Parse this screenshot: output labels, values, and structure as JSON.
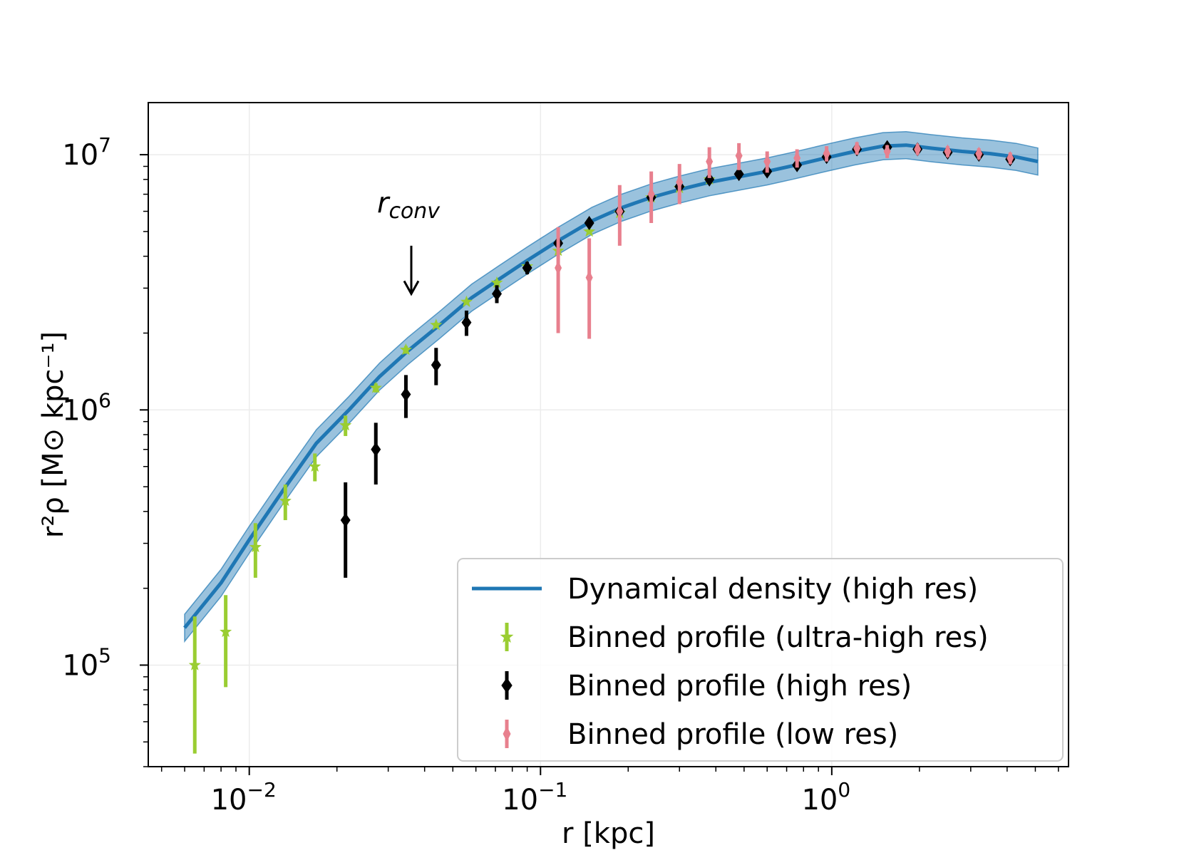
{
  "chart_data": {
    "type": "line",
    "title": "",
    "xlabel": "r [kpc]",
    "ylabel": "r²ρ [M⊙ kpc⁻¹]",
    "xscale": "log",
    "yscale": "log",
    "xlim": [
      0.0045,
      6.5
    ],
    "ylim": [
      40000,
      16000000
    ],
    "grid": true,
    "x_ticks": [
      {
        "value": 0.01,
        "base": "10",
        "exp": "−2"
      },
      {
        "value": 0.1,
        "base": "10",
        "exp": "−1"
      },
      {
        "value": 1,
        "base": "10",
        "exp": "0"
      }
    ],
    "y_ticks": [
      {
        "value": 100000,
        "base": "10",
        "exp": "5"
      },
      {
        "value": 1000000,
        "base": "10",
        "exp": "6"
      },
      {
        "value": 10000000,
        "base": "10",
        "exp": "7"
      }
    ],
    "annotation": {
      "text_main": "r",
      "text_sub": "conv",
      "x": 0.036,
      "arrow_from_y": 4400000,
      "arrow_to_y": 2850000
    },
    "legend_position": "lower-right",
    "series": [
      {
        "name": "Dynamical density (high res)",
        "kind": "line_band",
        "color": "#1f77b4",
        "x": [
          0.006,
          0.008,
          0.01,
          0.013,
          0.017,
          0.022,
          0.028,
          0.035,
          0.045,
          0.058,
          0.072,
          0.09,
          0.115,
          0.15,
          0.19,
          0.24,
          0.3,
          0.38,
          0.48,
          0.6,
          0.75,
          0.95,
          1.2,
          1.5,
          1.8,
          2.2,
          2.8,
          3.5,
          4.3,
          5.1
        ],
        "y": [
          140000,
          210000,
          310000,
          480000,
          740000,
          1000000,
          1350000,
          1700000,
          2150000,
          2750000,
          3250000,
          3850000,
          4600000,
          5500000,
          6200000,
          6800000,
          7300000,
          7800000,
          8200000,
          8600000,
          9100000,
          9700000,
          10300000,
          10800000,
          10900000,
          10600000,
          10300000,
          10100000,
          9800000,
          9400000
        ],
        "band_factor": 1.13
      },
      {
        "name": "Binned profile (ultra-high res)",
        "kind": "errorbar",
        "marker": "star",
        "color": "#9acd32",
        "x": [
          0.0065,
          0.0083,
          0.0105,
          0.0133,
          0.0168,
          0.0214,
          0.0272,
          0.0345,
          0.0438,
          0.0557,
          0.0708,
          0.09,
          0.115,
          0.147,
          0.187,
          0.24,
          0.3,
          0.38
        ],
        "y": [
          100000,
          135000,
          290000,
          440000,
          600000,
          870000,
          1220000,
          1720000,
          2150000,
          2650000,
          3150000,
          3650000,
          4200000,
          5000000,
          5900000,
          6800000,
          7400000,
          8000000
        ],
        "yerr_low": [
          55000,
          53000,
          70000,
          70000,
          75000,
          80000,
          50000,
          60000,
          50000,
          50000,
          50000,
          50000,
          50000,
          50000,
          50000,
          50000,
          50000,
          50000
        ],
        "yerr_high": [
          55000,
          53000,
          70000,
          70000,
          75000,
          80000,
          50000,
          60000,
          50000,
          50000,
          50000,
          50000,
          50000,
          50000,
          50000,
          50000,
          50000,
          50000
        ]
      },
      {
        "name": "Binned profile (high res)",
        "kind": "errorbar",
        "marker": "diamond",
        "color": "#000000",
        "x": [
          0.0214,
          0.0272,
          0.0345,
          0.0438,
          0.0557,
          0.0708,
          0.09,
          0.115,
          0.147,
          0.187,
          0.24,
          0.3,
          0.38,
          0.48,
          0.6,
          0.76,
          0.96,
          1.22,
          1.55,
          1.97,
          2.5,
          3.2,
          4.1
        ],
        "y": [
          370000,
          700000,
          1150000,
          1500000,
          2200000,
          2850000,
          3600000,
          4500000,
          5400000,
          6000000,
          6800000,
          7500000,
          8000000,
          8400000,
          8600000,
          9100000,
          9800000,
          10500000,
          10700000,
          10500000,
          10200000,
          10000000,
          9600000
        ],
        "yerr_low": [
          150000,
          190000,
          220000,
          250000,
          250000,
          230000,
          200000,
          200000,
          200000,
          200000,
          300000,
          300000,
          300000,
          300000,
          300000,
          300000,
          300000,
          300000,
          300000,
          300000,
          300000,
          300000,
          300000
        ],
        "yerr_high": [
          150000,
          190000,
          220000,
          250000,
          250000,
          230000,
          200000,
          200000,
          200000,
          200000,
          300000,
          300000,
          300000,
          300000,
          300000,
          300000,
          300000,
          300000,
          300000,
          300000,
          300000,
          300000,
          300000
        ]
      },
      {
        "name": "Binned profile (low res)",
        "kind": "errorbar",
        "marker": "thin_diamond",
        "color": "#e8808e",
        "x": [
          0.115,
          0.147,
          0.187,
          0.24,
          0.3,
          0.38,
          0.48,
          0.6,
          0.76,
          0.96,
          1.22,
          1.55,
          1.97,
          2.5,
          3.2,
          4.1
        ],
        "y": [
          3600000,
          3300000,
          6000000,
          7000000,
          7800000,
          9400000,
          9900000,
          9400000,
          9700000,
          10100000,
          10600000,
          10300000,
          10500000,
          10300000,
          10100000,
          9700000
        ],
        "yerr_low": [
          1600000,
          1400000,
          1600000,
          1600000,
          1400000,
          1300000,
          1200000,
          900000,
          800000,
          700000,
          600000,
          600000,
          500000,
          500000,
          500000,
          500000
        ],
        "yerr_high": [
          1600000,
          1400000,
          1600000,
          1600000,
          1400000,
          1300000,
          1200000,
          900000,
          800000,
          700000,
          600000,
          600000,
          500000,
          500000,
          500000,
          500000
        ]
      }
    ]
  }
}
